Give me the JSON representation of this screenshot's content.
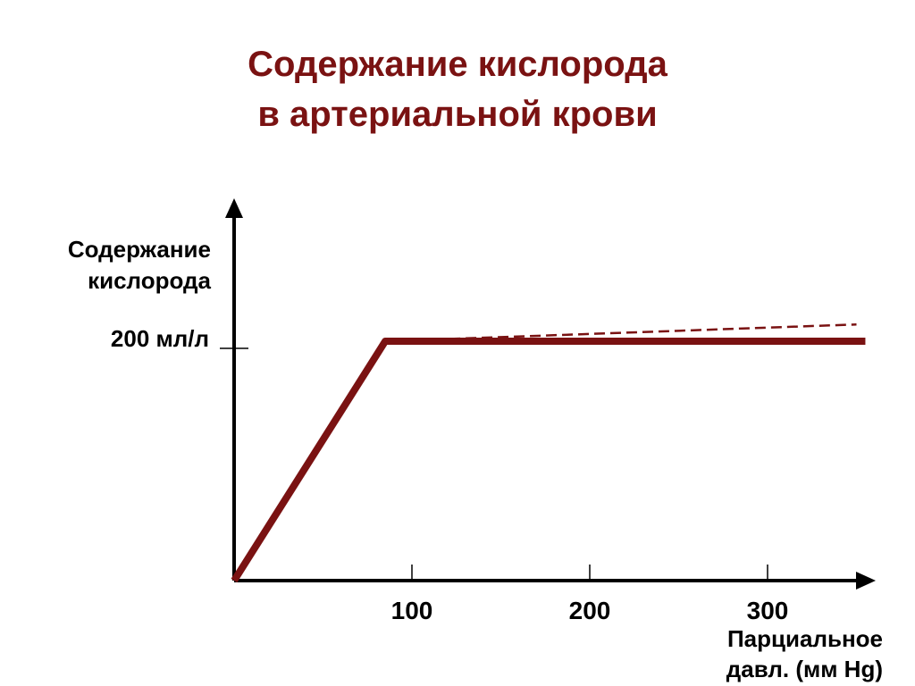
{
  "chart_data": {
    "type": "line",
    "title_lines": [
      "Содержание кислорода",
      "в артериальной крови"
    ],
    "ylabel_lines": [
      "Содержание",
      "кислорода"
    ],
    "xlabel_lines": [
      "Парциальное",
      "давл. (мм Hg)"
    ],
    "y_ticks": [
      {
        "value": 200,
        "label": "200 мл/л"
      }
    ],
    "x_ticks": [
      {
        "value": 100,
        "label": "100"
      },
      {
        "value": 200,
        "label": "200"
      },
      {
        "value": 300,
        "label": "300"
      }
    ],
    "xlim": [
      0,
      360
    ],
    "ylim": [
      0,
      260
    ],
    "grid": false,
    "colors": {
      "title": "#7a1212",
      "series": "#7a1212",
      "axis": "#000000"
    },
    "series": [
      {
        "style": "solid",
        "points": [
          [
            0,
            0
          ],
          [
            85,
            200
          ],
          [
            355,
            200
          ]
        ]
      },
      {
        "style": "dashed",
        "points": [
          [
            85,
            200
          ],
          [
            350,
            214
          ]
        ]
      }
    ]
  }
}
